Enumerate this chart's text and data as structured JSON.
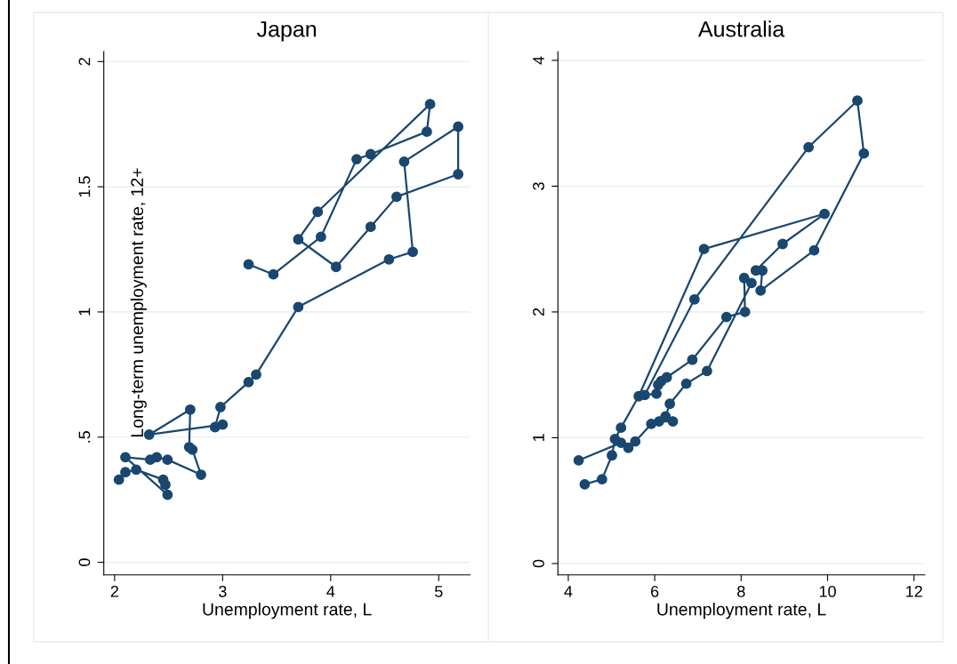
{
  "chart_data": [
    {
      "type": "line",
      "title": "Japan",
      "xlabel": "Unemployment rate, L",
      "ylabel": "Long-term unemployment rate, 12+",
      "marker": "circle",
      "line_style": "solid",
      "grid": "y",
      "legend": false,
      "xlim": [
        1.9,
        5.29
      ],
      "xticks": [
        2,
        3,
        4,
        5
      ],
      "ylim": [
        -0.05,
        2.04
      ],
      "yticks": [
        {
          "value": 0,
          "label": "0"
        },
        {
          "value": 0.5,
          "label": ".5"
        },
        {
          "value": 1,
          "label": "1"
        },
        {
          "value": 1.5,
          "label": "1.5"
        },
        {
          "value": 2,
          "label": "2"
        }
      ],
      "series": [
        {
          "color": "#1a476f",
          "x": [
            2.04,
            2.1,
            2.2,
            2.45,
            2.47,
            2.49,
            2.1,
            2.33,
            2.39,
            2.49,
            2.8,
            2.72,
            2.69,
            2.7,
            2.32,
            3.0,
            2.93,
            2.98,
            3.24,
            3.31,
            3.7,
            4.54,
            4.76,
            4.68,
            5.18,
            5.18,
            4.61,
            4.37,
            4.05,
            3.7,
            3.88,
            4.92,
            4.89,
            4.37,
            4.24,
            3.91,
            3.47,
            3.24
          ],
          "values": [
            0.33,
            0.36,
            0.37,
            0.33,
            0.31,
            0.27,
            0.42,
            0.41,
            0.42,
            0.41,
            0.35,
            0.45,
            0.46,
            0.61,
            0.51,
            0.55,
            0.54,
            0.62,
            0.72,
            0.75,
            1.02,
            1.21,
            1.24,
            1.6,
            1.74,
            1.55,
            1.46,
            1.34,
            1.18,
            1.29,
            1.4,
            1.83,
            1.72,
            1.63,
            1.61,
            1.3,
            1.15,
            1.19
          ]
        }
      ]
    },
    {
      "type": "line",
      "title": "Australia",
      "xlabel": "Unemployment rate, L",
      "marker": "circle",
      "line_style": "solid",
      "grid": "y",
      "legend": false,
      "xlim": [
        3.76,
        12.25
      ],
      "xticks": [
        4,
        6,
        8,
        10,
        12
      ],
      "ylim": [
        -0.09,
        4.07
      ],
      "yticks": [
        0,
        1,
        2,
        3,
        4
      ],
      "series": [
        {
          "color": "#1a476f",
          "x": [
            4.38,
            4.78,
            5.01,
            5.08,
            5.22,
            5.63,
            7.14,
            9.93,
            8.96,
            8.34,
            8.49,
            8.45,
            9.69,
            10.84,
            10.69,
            9.56,
            6.92,
            5.77,
            6.04,
            6.08,
            6.15,
            6.28,
            6.87,
            7.66,
            8.09,
            8.07,
            8.24,
            7.21,
            6.73,
            6.35,
            6.25,
            6.42,
            6.1,
            5.92,
            5.55,
            5.39,
            5.22,
            4.24
          ],
          "values": [
            0.63,
            0.67,
            0.86,
            0.99,
            1.08,
            1.33,
            2.5,
            2.78,
            2.54,
            2.33,
            2.33,
            2.17,
            2.49,
            3.26,
            3.68,
            3.31,
            2.1,
            1.34,
            1.35,
            1.42,
            1.45,
            1.48,
            1.62,
            1.96,
            2.0,
            2.27,
            2.23,
            1.53,
            1.43,
            1.27,
            1.17,
            1.13,
            1.13,
            1.11,
            0.97,
            0.92,
            0.96,
            0.82
          ]
        }
      ]
    }
  ]
}
